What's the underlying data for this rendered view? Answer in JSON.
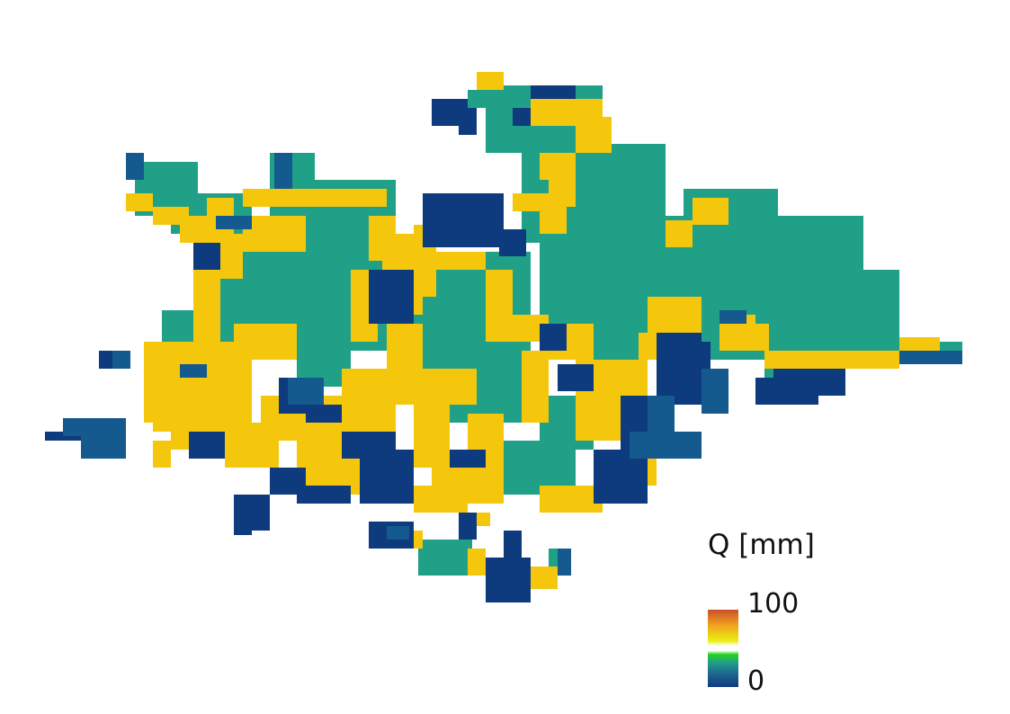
{
  "legend": {
    "title": "Q [mm]",
    "max_label": "100",
    "min_label": "0"
  },
  "colors": {
    "teal": "#21a088",
    "yellow": "#f4c70c",
    "navy": "#0e3a7e",
    "steel": "#145a8e",
    "colormap": [
      "#0e3a7e",
      "#1e6a8e",
      "#21a088",
      "#22d41a",
      "#ffffff",
      "#e8ef10",
      "#f2a020",
      "#c8502a"
    ]
  }
}
